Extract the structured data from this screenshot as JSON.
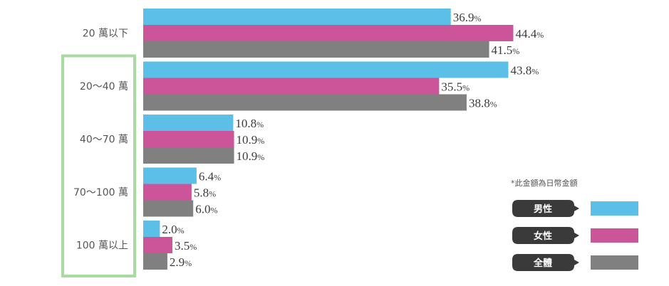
{
  "chart_data": {
    "type": "bar",
    "orientation": "horizontal",
    "categories": [
      "20 萬以下",
      "20～40 萬",
      "40～70 萬",
      "70～100 萬",
      "100 萬以上"
    ],
    "series": [
      {
        "name": "男性",
        "color": "#5bbfe8",
        "values": [
          36.9,
          43.8,
          10.8,
          6.4,
          2.0
        ]
      },
      {
        "name": "女性",
        "color": "#cc5599",
        "values": [
          44.4,
          35.5,
          10.9,
          5.8,
          3.5
        ]
      },
      {
        "name": "全體",
        "color": "#808080",
        "values": [
          41.5,
          38.8,
          10.9,
          6.0,
          2.9
        ]
      }
    ],
    "value_suffix": "%",
    "xlim": [
      0,
      45
    ],
    "grid": false,
    "legend_position": "bottom-right",
    "note": "*此金額為日幣金額",
    "highlight": {
      "categories": [
        "20～40 萬",
        "40～70 萬",
        "70～100 萬",
        "100 萬以上"
      ],
      "color": "#a8dba0"
    }
  }
}
